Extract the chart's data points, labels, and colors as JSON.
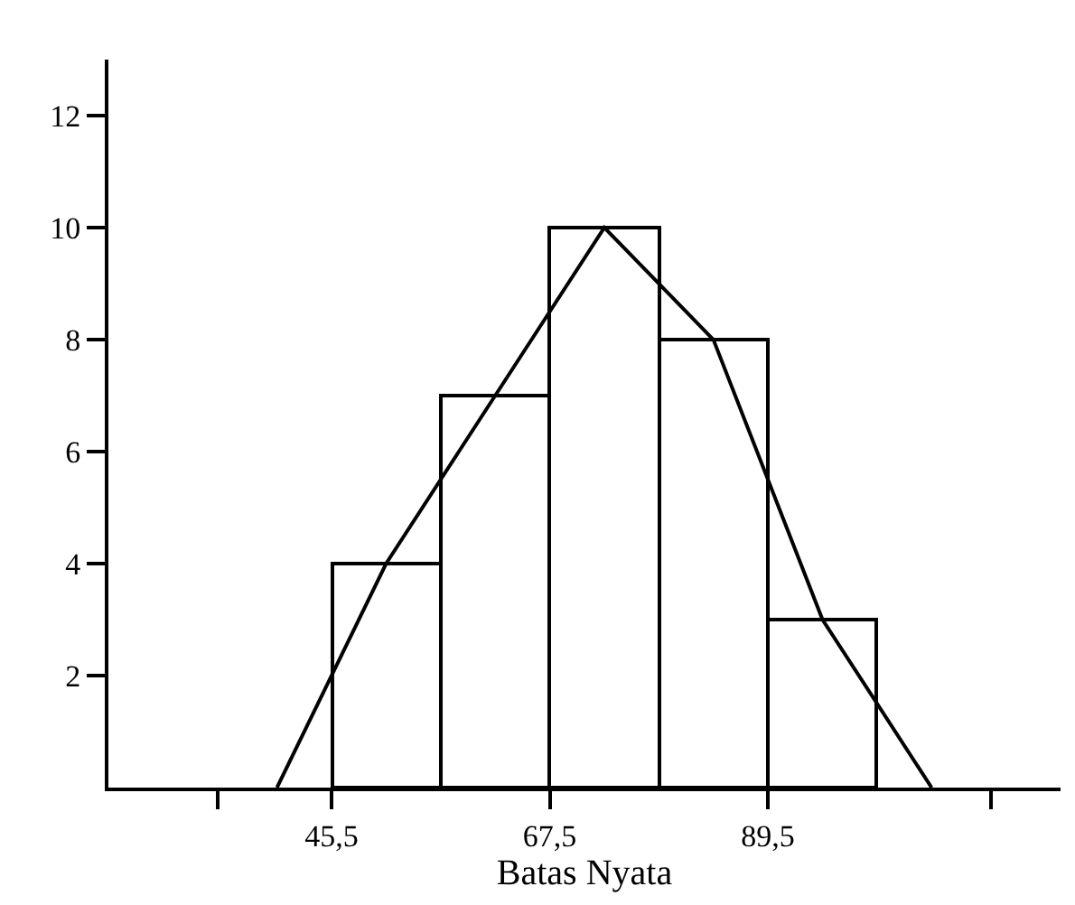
{
  "chart_data": {
    "type": "histogram",
    "xlabel": "Batas Nyata",
    "bins": [
      45.5,
      56.5,
      67.5,
      78.5,
      89.5,
      100.5
    ],
    "series": [
      {
        "color": "#000000",
        "values": [
          4,
          7,
          10,
          8,
          3
        ]
      },
      {
        "type": "line",
        "color": "#000000",
        "x": [
          40,
          51,
          62,
          73,
          84,
          95,
          106
        ],
        "values": [
          0,
          4,
          7,
          10,
          8,
          3,
          0
        ]
      }
    ],
    "xlim": [
      23,
      119
    ],
    "xticks": [
      {
        "value": 34,
        "label": null
      },
      {
        "value": 45.5,
        "label": "45,5"
      },
      {
        "value": 67.5,
        "label": "67,5"
      },
      {
        "value": 89.5,
        "label": "89,5"
      },
      {
        "value": 112,
        "label": null
      }
    ],
    "ylim": [
      0,
      13
    ],
    "yticks": [
      2,
      4,
      6,
      8,
      10,
      12
    ],
    "marker": "none"
  }
}
